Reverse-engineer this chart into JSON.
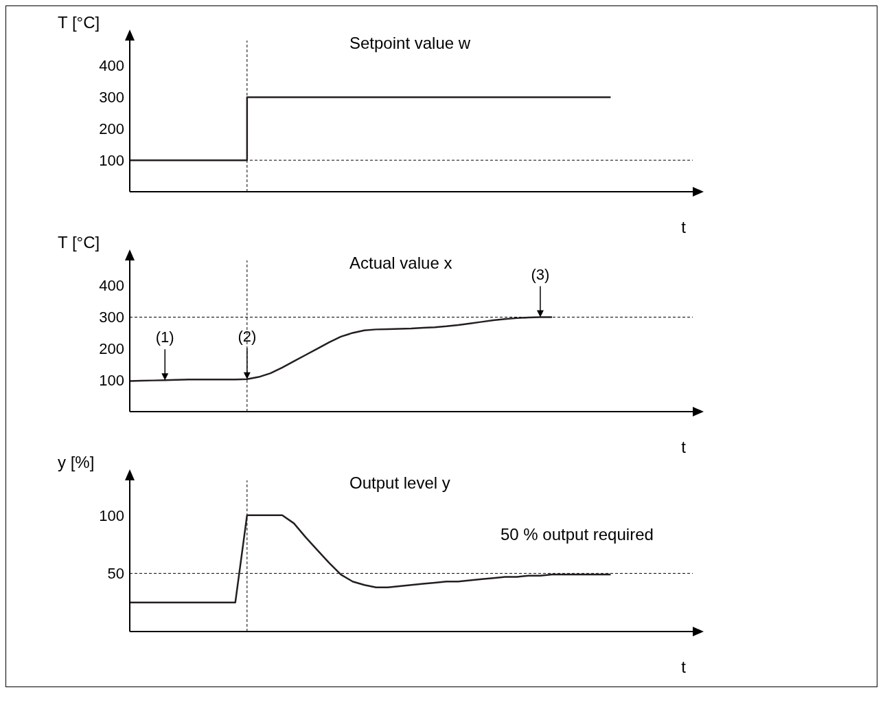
{
  "chart_data": [
    {
      "type": "step",
      "title": "Setpoint value w",
      "ylabel": "T [°C]",
      "xlabel": "t",
      "categories": [
        null,
        null,
        null,
        null,
        null,
        null,
        null,
        null,
        null,
        null,
        null,
        null,
        null,
        null,
        null,
        null,
        null,
        null,
        null,
        null,
        null,
        null,
        null,
        null,
        null,
        null,
        null,
        null,
        null,
        null,
        null,
        null,
        null,
        null,
        null,
        null,
        null,
        null,
        null,
        null,
        null,
        null,
        null,
        null,
        null,
        null,
        null,
        null,
        null
      ],
      "values": [
        100,
        100,
        100,
        100,
        100,
        100,
        100,
        100,
        100,
        100,
        300,
        300,
        300,
        300,
        300,
        300,
        300,
        300,
        300,
        300,
        300,
        300,
        300,
        300,
        300,
        300,
        300,
        300,
        300,
        300,
        300,
        300,
        300,
        300,
        300,
        300,
        300,
        300,
        300,
        300,
        300,
        300,
        null,
        null,
        null,
        null,
        null,
        null,
        null
      ],
      "color": "#231f20",
      "ylim": [
        0,
        480
      ],
      "yticks": [
        100,
        200,
        300,
        400
      ],
      "tick_labels": "y",
      "ref_lines": [
        {
          "axis": "y",
          "value": 100,
          "line_style": "dashed"
        }
      ]
    },
    {
      "type": "line",
      "title": "Actual value x",
      "ylabel": "T [°C]",
      "xlabel": "t",
      "categories": [
        null,
        null,
        null,
        null,
        null,
        null,
        null,
        null,
        null,
        null,
        null,
        null,
        null,
        null,
        null,
        null,
        null,
        null,
        null,
        null,
        null,
        null,
        null,
        null,
        null,
        null,
        null,
        null,
        null,
        null,
        null,
        null,
        null,
        null,
        null,
        null,
        null,
        null,
        null,
        null,
        null,
        null,
        null,
        null,
        null,
        null,
        null,
        null,
        null
      ],
      "values": [
        97,
        98,
        99,
        100,
        101,
        102,
        102,
        102,
        102,
        102,
        103,
        110,
        122,
        140,
        160,
        180,
        200,
        220,
        238,
        250,
        258,
        261,
        262,
        263,
        264,
        266,
        268,
        271,
        275,
        280,
        285,
        290,
        294,
        297,
        299,
        300,
        300,
        null,
        null,
        null,
        null,
        null,
        null,
        null,
        null,
        null,
        null,
        null,
        null
      ],
      "color": "#231f20",
      "ylim": [
        0,
        480
      ],
      "yticks": [
        100,
        200,
        300,
        400
      ],
      "tick_labels": "y",
      "ref_lines": [
        {
          "axis": "y",
          "value": 300,
          "line_style": "dashed"
        }
      ],
      "annotations": [
        {
          "text": "(1)",
          "y": 100
        },
        {
          "text": "(2)",
          "y": 103
        },
        {
          "text": "(3)",
          "y": 300
        }
      ]
    },
    {
      "type": "line",
      "title": "Output level y",
      "ylabel": "y [%]",
      "xlabel": "t",
      "categories": [
        null,
        null,
        null,
        null,
        null,
        null,
        null,
        null,
        null,
        null,
        null,
        null,
        null,
        null,
        null,
        null,
        null,
        null,
        null,
        null,
        null,
        null,
        null,
        null,
        null,
        null,
        null,
        null,
        null,
        null,
        null,
        null,
        null,
        null,
        null,
        null,
        null,
        null,
        null,
        null,
        null,
        null,
        null,
        null,
        null,
        null,
        null,
        null,
        null
      ],
      "values": [
        25,
        25,
        25,
        25,
        25,
        25,
        25,
        25,
        25,
        25,
        100,
        100,
        100,
        100,
        93,
        81,
        70,
        59,
        49,
        43,
        40,
        38,
        38,
        39,
        40,
        41,
        42,
        43,
        43,
        44,
        45,
        46,
        47,
        47,
        48,
        48,
        49,
        49,
        49,
        49,
        49,
        49,
        null,
        null,
        null,
        null,
        null,
        null,
        null
      ],
      "color": "#231f20",
      "ylim": [
        0,
        130
      ],
      "yticks": [
        50,
        100
      ],
      "tick_labels": "y",
      "ref_lines": [
        {
          "axis": "y",
          "value": 50,
          "line_style": "dashed"
        }
      ],
      "annotations": [
        "50 % output required"
      ]
    }
  ]
}
